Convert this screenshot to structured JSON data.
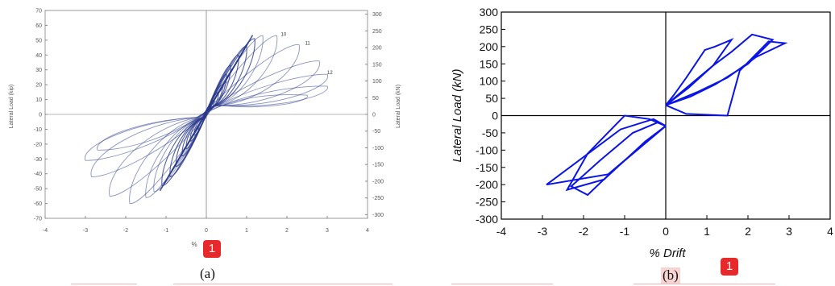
{
  "badge_color": "#e8292b",
  "chart_data": [
    {
      "type": "line",
      "caption": "(a)",
      "badge": "1",
      "xlabel": "%",
      "ylabel": "Lateral Load (kip)",
      "y2label": "Lateral Load (kN)",
      "xlim": [
        -4,
        4
      ],
      "ylim": [
        -70,
        70
      ],
      "y2lim": [
        -311,
        311
      ],
      "xticks": [
        "-4",
        "-3",
        "-2",
        "-1",
        "0",
        "1",
        "2",
        "3",
        "4"
      ],
      "yticks": [
        "70",
        "60",
        "50",
        "40",
        "30",
        "20",
        "10",
        "0",
        "-10",
        "-20",
        "-30",
        "-40",
        "-50",
        "-60",
        "-70"
      ],
      "y2ticks": [
        "300",
        "250",
        "200",
        "150",
        "100",
        "50",
        "0",
        "-50",
        "-100",
        "-150",
        "-200",
        "-250",
        "-300"
      ],
      "cycle_labels": [
        {
          "text": "10",
          "x": 1.85,
          "y": 53
        },
        {
          "text": "11",
          "x": 2.45,
          "y": 47
        },
        {
          "text": "12",
          "x": 3.0,
          "y": 27
        }
      ],
      "color": "#2a3a8c",
      "series": [
        {
          "values": [
            [
              -0.2,
              -10
            ],
            [
              0.2,
              10
            ]
          ]
        },
        {
          "values": [
            [
              -0.3,
              -14
            ],
            [
              0.3,
              15
            ]
          ]
        },
        {
          "values": [
            [
              -0.4,
              -18
            ],
            [
              0.4,
              20
            ]
          ]
        },
        {
          "values": [
            [
              -0.5,
              -23
            ],
            [
              0.5,
              27
            ]
          ]
        },
        {
          "values": [
            [
              -0.6,
              -28
            ],
            [
              0.6,
              33
            ]
          ]
        },
        {
          "values": [
            [
              -0.75,
              -35
            ],
            [
              0.8,
              40
            ]
          ]
        },
        {
          "values": [
            [
              -0.9,
              -42
            ],
            [
              1.0,
              46
            ]
          ]
        },
        {
          "values": [
            [
              -1.1,
              -48
            ],
            [
              1.2,
              51
            ]
          ]
        },
        {
          "values": [
            [
              -1.3,
              -52
            ],
            [
              1.4,
              53
            ]
          ]
        },
        {
          "values": [
            [
              -1.5,
              -56
            ],
            [
              1.75,
              53
            ]
          ]
        },
        {
          "values": [
            [
              -1.9,
              -60
            ],
            [
              2.3,
              47
            ]
          ]
        },
        {
          "values": [
            [
              -2.4,
              -55
            ],
            [
              2.8,
              36
            ]
          ]
        },
        {
          "values": [
            [
              -2.85,
              -42
            ],
            [
              3.0,
              27
            ]
          ]
        },
        {
          "values": [
            [
              -3.0,
              -31
            ],
            [
              3.0,
              19
            ]
          ]
        },
        {
          "values": [
            [
              -2.7,
              -24
            ],
            [
              2.5,
              13
            ]
          ]
        }
      ]
    },
    {
      "type": "line",
      "caption": "(b)",
      "badge": "1",
      "xlabel": "% Drift",
      "ylabel": "Lateral Load (kN)",
      "xlim": [
        -4,
        4
      ],
      "ylim": [
        -300,
        300
      ],
      "xticks": [
        "-4",
        "-3",
        "-2",
        "-1",
        "0",
        "1",
        "2",
        "3",
        "4"
      ],
      "yticks": [
        "300",
        "250",
        "200",
        "150",
        "100",
        "50",
        "0",
        "-50",
        "-100",
        "-150",
        "-200",
        "-250",
        "-300"
      ],
      "color": "#0a14e6",
      "series": [
        {
          "values": [
            [
              0,
              30
            ],
            [
              0.2,
              60
            ],
            [
              0.5,
              110
            ],
            [
              0.95,
              190
            ],
            [
              1.2,
              200
            ],
            [
              1.6,
              220
            ],
            [
              1.15,
              145
            ],
            [
              0.55,
              80
            ],
            [
              0,
              30
            ]
          ]
        },
        {
          "values": [
            [
              0,
              30
            ],
            [
              0.5,
              80
            ],
            [
              1.1,
              140
            ],
            [
              1.6,
              185
            ],
            [
              2.1,
              235
            ],
            [
              2.6,
              220
            ],
            [
              2.0,
              150
            ],
            [
              1.2,
              90
            ],
            [
              0.6,
              55
            ],
            [
              0,
              30
            ]
          ]
        },
        {
          "values": [
            [
              0,
              30
            ],
            [
              0.8,
              70
            ],
            [
              1.5,
              110
            ],
            [
              2.2,
              170
            ],
            [
              2.9,
              210
            ],
            [
              2.5,
              215
            ],
            [
              1.8,
              130
            ],
            [
              1.5,
              0
            ],
            [
              0.5,
              5
            ],
            [
              0,
              30
            ]
          ]
        },
        {
          "values": [
            [
              0,
              -30
            ],
            [
              -0.5,
              -75
            ],
            [
              -1.0,
              -130
            ],
            [
              -1.5,
              -185
            ],
            [
              -2.4,
              -215
            ],
            [
              -1.9,
              -110
            ],
            [
              -1.0,
              0
            ],
            [
              -0.4,
              -10
            ],
            [
              0,
              -30
            ]
          ]
        },
        {
          "values": [
            [
              0,
              -30
            ],
            [
              -0.6,
              -90
            ],
            [
              -1.2,
              -150
            ],
            [
              -1.9,
              -230
            ],
            [
              -2.3,
              -205
            ],
            [
              -1.6,
              -130
            ],
            [
              -0.8,
              -50
            ],
            [
              -0.2,
              -20
            ],
            [
              0,
              -30
            ]
          ]
        },
        {
          "values": [
            [
              0,
              -30
            ],
            [
              -0.7,
              -100
            ],
            [
              -1.4,
              -170
            ],
            [
              -2.9,
              -200
            ],
            [
              -2.0,
              -120
            ],
            [
              -1.1,
              -40
            ],
            [
              -0.3,
              -10
            ],
            [
              0,
              -30
            ]
          ]
        }
      ]
    }
  ]
}
